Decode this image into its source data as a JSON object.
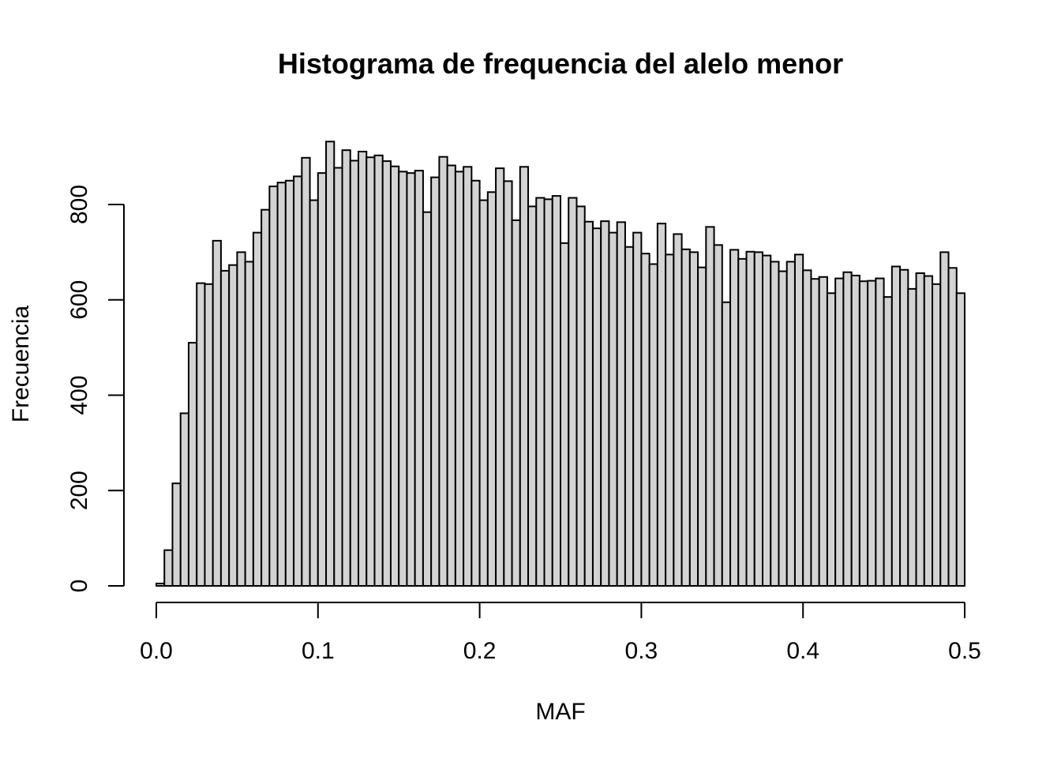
{
  "chart_data": {
    "type": "bar",
    "title": "Histograma de frequencia del alelo menor",
    "xlabel": "MAF",
    "ylabel": "Frecuencia",
    "bin_width": 0.005,
    "bin_start": 0.0,
    "xlim": [
      0.0,
      0.5
    ],
    "ylim": [
      0,
      930
    ],
    "x_ticks": [
      0.0,
      0.1,
      0.2,
      0.3,
      0.4,
      0.5
    ],
    "x_tick_labels": [
      "0.0",
      "0.1",
      "0.2",
      "0.3",
      "0.4",
      "0.5"
    ],
    "y_ticks": [
      0,
      200,
      400,
      600,
      800
    ],
    "y_tick_labels": [
      "0",
      "200",
      "400",
      "600",
      "800"
    ],
    "bar_fill": "#d3d3d3",
    "bar_stroke": "#000000",
    "grid": false,
    "values": [
      5,
      75,
      215,
      362,
      510,
      635,
      633,
      724,
      661,
      673,
      700,
      680,
      741,
      789,
      838,
      846,
      850,
      859,
      898,
      809,
      866,
      932,
      877,
      914,
      892,
      911,
      899,
      903,
      891,
      880,
      869,
      866,
      871,
      784,
      857,
      900,
      882,
      869,
      879,
      850,
      809,
      826,
      876,
      849,
      767,
      879,
      796,
      814,
      811,
      818,
      719,
      814,
      796,
      764,
      750,
      765,
      741,
      763,
      711,
      741,
      697,
      675,
      760,
      695,
      738,
      706,
      700,
      668,
      753,
      715,
      595,
      705,
      686,
      701,
      700,
      693,
      680,
      660,
      680,
      695,
      662,
      644,
      648,
      614,
      645,
      658,
      651,
      639,
      640,
      645,
      606,
      670,
      663,
      623,
      656,
      650,
      633,
      700,
      667,
      614
    ]
  }
}
